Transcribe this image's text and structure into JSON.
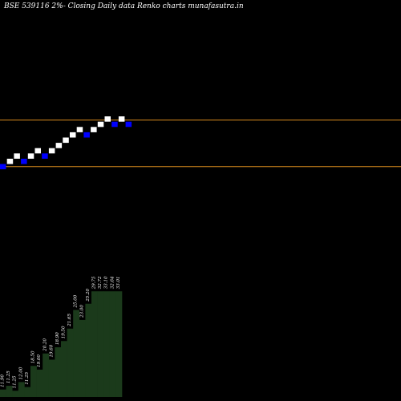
{
  "header": {
    "title": "BSE 539116  2%-  Closing Daily data  Renko  charts munafasutra.in"
  },
  "colors": {
    "background": "#000000",
    "up_brick": "#ffffff",
    "down_brick": "#0000ff",
    "guide_line": "#d98b1c",
    "volume_fill": "#1b3a1b"
  },
  "chart_data": {
    "type": "renko",
    "title": "BSE 539116  2%-  Closing Daily data  Renko  charts munafasutra.in",
    "brick_pct": 2,
    "bricks": [
      {
        "dir": "down",
        "level": 0
      },
      {
        "dir": "up",
        "level": 1
      },
      {
        "dir": "up",
        "level": 2
      },
      {
        "dir": "down",
        "level": 1
      },
      {
        "dir": "up",
        "level": 2
      },
      {
        "dir": "up",
        "level": 3
      },
      {
        "dir": "down",
        "level": 2
      },
      {
        "dir": "up",
        "level": 3
      },
      {
        "dir": "up",
        "level": 4
      },
      {
        "dir": "up",
        "level": 5
      },
      {
        "dir": "up",
        "level": 6
      },
      {
        "dir": "up",
        "level": 7
      },
      {
        "dir": "down",
        "level": 6
      },
      {
        "dir": "up",
        "level": 7
      },
      {
        "dir": "up",
        "level": 8
      },
      {
        "dir": "up",
        "level": 9
      },
      {
        "dir": "down",
        "level": 8
      },
      {
        "dir": "up",
        "level": 9
      },
      {
        "dir": "down",
        "level": 8
      }
    ],
    "guide_lines": [
      {
        "level": 8
      },
      {
        "level": 0
      }
    ],
    "volume_labels": [
      "11.90",
      "11.25",
      "11.25",
      "12.00",
      "11.25",
      "18.50",
      "19.00",
      "20.20",
      "19.60",
      "18.90",
      "19.50",
      "21.65",
      "25.00",
      "23.00",
      "25.20",
      "29.75",
      "32.72",
      "33.10",
      "32.64",
      "33.01"
    ],
    "volume_levels": [
      0.06,
      0.09,
      0.05,
      0.12,
      0.08,
      0.25,
      0.22,
      0.35,
      0.3,
      0.4,
      0.45,
      0.55,
      0.7,
      0.62,
      0.75,
      0.85,
      0.85,
      0.85,
      0.85,
      0.85
    ]
  }
}
